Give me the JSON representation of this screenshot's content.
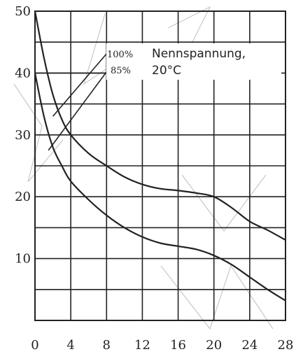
{
  "chart_data": {
    "type": "line",
    "title": "",
    "xlabel": "",
    "ylabel": "",
    "xlim": [
      0,
      28
    ],
    "ylim": [
      0,
      50
    ],
    "x_ticks": [
      0,
      4,
      8,
      12,
      16,
      20,
      24,
      28
    ],
    "y_ticks": [
      10,
      20,
      30,
      40,
      50
    ],
    "x_tick_labels": [
      "0",
      "4",
      "8",
      "12",
      "16",
      "20",
      "24",
      "28"
    ],
    "y_tick_labels": [
      "10",
      "20",
      "30",
      "40",
      "50"
    ],
    "grid": true,
    "annotation": {
      "line1": "Nennspannung,",
      "line2": "20°C"
    },
    "series": [
      {
        "name": "100%",
        "x": [
          0,
          1,
          2,
          3,
          4,
          6,
          8,
          10,
          12,
          14,
          16,
          18,
          20,
          22,
          24,
          26,
          28
        ],
        "y": [
          50,
          42.5,
          36.5,
          32.5,
          30,
          27,
          25,
          23.2,
          22,
          21.3,
          21,
          20.6,
          20,
          18.2,
          16,
          14.6,
          13
        ]
      },
      {
        "name": "85%",
        "x": [
          0,
          1,
          2,
          3,
          4,
          6,
          8,
          10,
          12,
          14,
          16,
          18,
          20,
          22,
          24,
          26,
          28
        ],
        "y": [
          40,
          33,
          28,
          25,
          22.5,
          19.5,
          17,
          15,
          13.5,
          12.5,
          12,
          11.5,
          10.5,
          9,
          7,
          5,
          3.2
        ]
      }
    ]
  }
}
